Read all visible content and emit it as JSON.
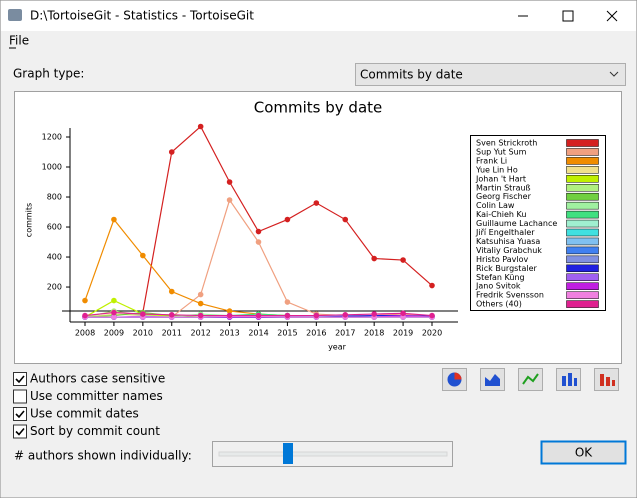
{
  "window": {
    "title": "D:\\TortoiseGit - Statistics - TortoiseGit",
    "menu": [
      "File"
    ]
  },
  "graph_type": {
    "label": "Graph type:",
    "selected": "Commits by date"
  },
  "options": [
    {
      "label": "Authors case sensitive",
      "checked": true
    },
    {
      "label": "Use committer names",
      "checked": false
    },
    {
      "label": "Use commit dates",
      "checked": true
    },
    {
      "label": "Sort by commit count",
      "checked": true
    }
  ],
  "authors_slider": {
    "label": "# authors shown individually:"
  },
  "ok_button": "OK",
  "chart_data": {
    "type": "line",
    "title": "Commits by date",
    "x_label": "year",
    "y_label": "commits",
    "x": [
      2008,
      2009,
      2010,
      2011,
      2012,
      2013,
      2014,
      2015,
      2016,
      2017,
      2018,
      2019,
      2020
    ],
    "xlim": [
      2007.5,
      2020.5
    ],
    "ylim": [
      -33,
      1280
    ],
    "yticks": [
      200,
      400,
      600,
      800,
      1000,
      1200
    ],
    "series": [
      {
        "name": "Sven Strickroth",
        "color": "#d42020",
        "values": [
          null,
          null,
          30,
          1100,
          1270,
          900,
          570,
          650,
          760,
          650,
          390,
          380,
          210
        ]
      },
      {
        "name": "Sup Yut Sum",
        "color": "#f0a080",
        "values": [
          null,
          null,
          10,
          0,
          150,
          780,
          500,
          100,
          20,
          10,
          10,
          20,
          5
        ]
      },
      {
        "name": "Frank Li",
        "color": "#f08c00",
        "values": [
          110,
          650,
          410,
          170,
          90,
          40,
          20,
          10,
          5,
          5,
          5,
          5,
          0
        ]
      },
      {
        "name": "Yue Lin Ho",
        "color": "#f0e08c",
        "values": [
          0,
          20,
          10,
          5,
          0,
          0,
          0,
          0,
          0,
          0,
          0,
          0,
          0
        ]
      },
      {
        "name": "Johan 't Hart",
        "color": "#c0f000",
        "values": [
          0,
          110,
          20,
          5,
          0,
          0,
          0,
          0,
          0,
          0,
          0,
          0,
          0
        ]
      },
      {
        "name": "Martin Strauß",
        "color": "#b0f080",
        "values": [
          0,
          40,
          10,
          0,
          0,
          0,
          0,
          0,
          0,
          0,
          0,
          0,
          0
        ]
      },
      {
        "name": "Georg Fischer",
        "color": "#70d040",
        "values": [
          0,
          10,
          30,
          10,
          0,
          0,
          0,
          0,
          0,
          0,
          0,
          0,
          0
        ]
      },
      {
        "name": "Colin Law",
        "color": "#a0f0a0",
        "values": [
          0,
          0,
          0,
          0,
          20,
          10,
          0,
          0,
          0,
          0,
          0,
          0,
          0
        ]
      },
      {
        "name": "Kai-Chieh Ku",
        "color": "#40e080",
        "values": [
          0,
          0,
          0,
          0,
          0,
          10,
          20,
          10,
          0,
          0,
          0,
          0,
          0
        ]
      },
      {
        "name": "Guillaume Lachance",
        "color": "#a0f0d0",
        "values": [
          0,
          0,
          0,
          0,
          0,
          0,
          10,
          5,
          0,
          0,
          0,
          0,
          0
        ]
      },
      {
        "name": "Jiří Engelthaler",
        "color": "#40e0e0",
        "values": [
          0,
          0,
          0,
          0,
          0,
          0,
          0,
          10,
          10,
          0,
          0,
          0,
          0
        ]
      },
      {
        "name": "Katsuhisa Yuasa",
        "color": "#80c0f0",
        "values": [
          0,
          0,
          0,
          0,
          0,
          0,
          0,
          0,
          5,
          10,
          5,
          0,
          0
        ]
      },
      {
        "name": "Vitaliy Grabchuk",
        "color": "#4080f0",
        "values": [
          0,
          0,
          0,
          0,
          0,
          0,
          0,
          0,
          0,
          0,
          10,
          5,
          0
        ]
      },
      {
        "name": "Hristo Pavlov",
        "color": "#8090e0",
        "values": [
          0,
          0,
          0,
          0,
          0,
          0,
          5,
          5,
          0,
          0,
          0,
          0,
          0
        ]
      },
      {
        "name": "Rick Burgstaler",
        "color": "#2020e0",
        "values": [
          0,
          0,
          0,
          0,
          0,
          0,
          0,
          0,
          0,
          5,
          10,
          10,
          5
        ]
      },
      {
        "name": "Stefan Küng",
        "color": "#a060f0",
        "values": [
          0,
          0,
          5,
          0,
          0,
          0,
          0,
          0,
          0,
          0,
          0,
          0,
          0
        ]
      },
      {
        "name": "Jano Svitok",
        "color": "#c020e0",
        "values": [
          0,
          0,
          0,
          0,
          0,
          0,
          0,
          0,
          0,
          0,
          0,
          10,
          0
        ]
      },
      {
        "name": "Fredrik Svensson",
        "color": "#f080e0",
        "values": [
          0,
          0,
          0,
          0,
          0,
          5,
          5,
          0,
          0,
          0,
          0,
          0,
          0
        ]
      },
      {
        "name": "Others (40)",
        "color": "#e02090",
        "values": [
          10,
          30,
          20,
          15,
          10,
          10,
          10,
          10,
          10,
          15,
          20,
          25,
          10
        ]
      }
    ]
  }
}
